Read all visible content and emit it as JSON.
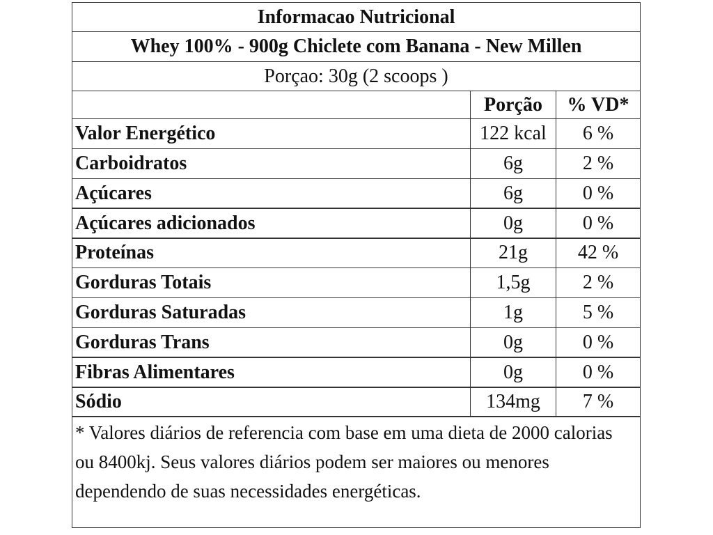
{
  "title": "Informacao Nutricional",
  "subtitle": "Whey 100% - 900g Chiclete com Banana - New Millen",
  "serving": "Porçao: 30g (2 scoops )",
  "header": {
    "portion": "Porção",
    "daily_value": "% VD*"
  },
  "rows": [
    [
      "Valor Energético",
      "122 kcal",
      "6 %"
    ],
    [
      "Carboidratos",
      "6g",
      "2 %"
    ],
    [
      "Açúcares",
      "6g",
      "0 %"
    ],
    [
      "Açúcares adicionados",
      "0g",
      "0 %"
    ],
    [
      "Proteínas",
      "21g",
      "42 %"
    ],
    [
      "Gorduras Totais",
      "1,5g",
      "2 %"
    ],
    [
      "Gorduras Saturadas",
      "1g",
      "5 %"
    ],
    [
      "Gorduras Trans",
      "0g",
      "0 %"
    ],
    [
      "Fibras Alimentares",
      "0g",
      "0 %"
    ],
    [
      "Sódio",
      "134mg",
      "7 %"
    ]
  ],
  "footnote": "* Valores diários de referencia com base em uma dieta de 2000 calorias ou 8400kj. Seus valores diários podem ser maiores ou menores dependendo de suas necessidades energéticas."
}
